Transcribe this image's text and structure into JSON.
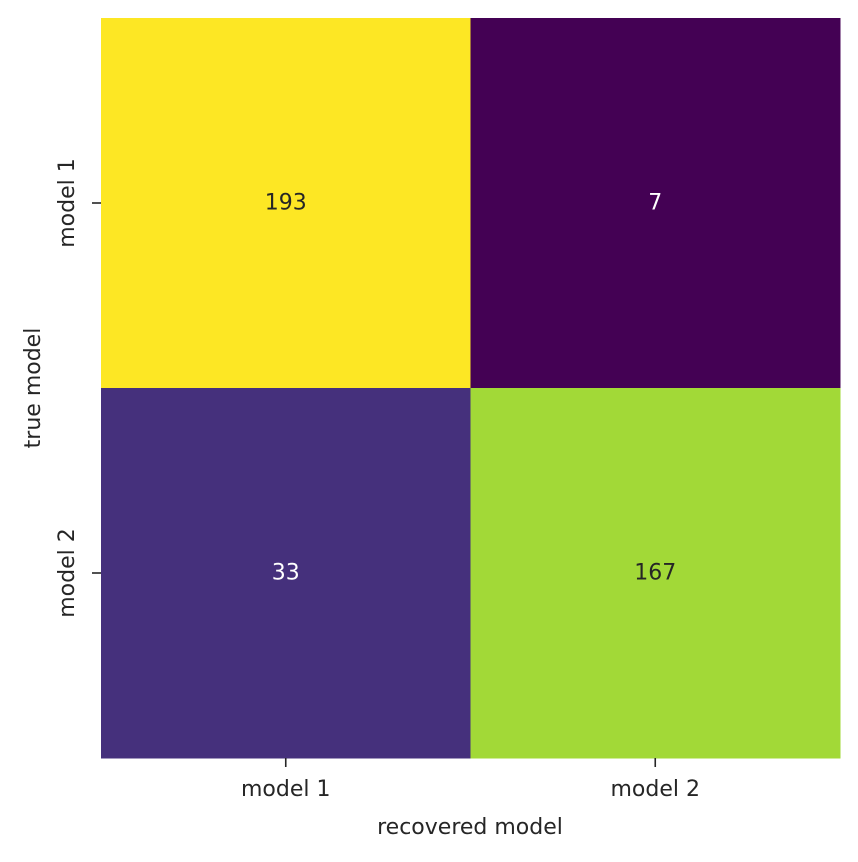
{
  "chart_data": {
    "type": "heatmap",
    "title": "",
    "xlabel": "recovered model",
    "ylabel": "true model",
    "x_categories": [
      "model 1",
      "model 2"
    ],
    "y_categories": [
      "model 1",
      "model 2"
    ],
    "values": [
      [
        193,
        7
      ],
      [
        33,
        167
      ]
    ],
    "colormap": "viridis",
    "value_range": [
      7,
      193
    ],
    "colorbar": false,
    "grid": false,
    "annotation_colors": {
      "dark": "#262626",
      "light": "#ffffff"
    }
  }
}
